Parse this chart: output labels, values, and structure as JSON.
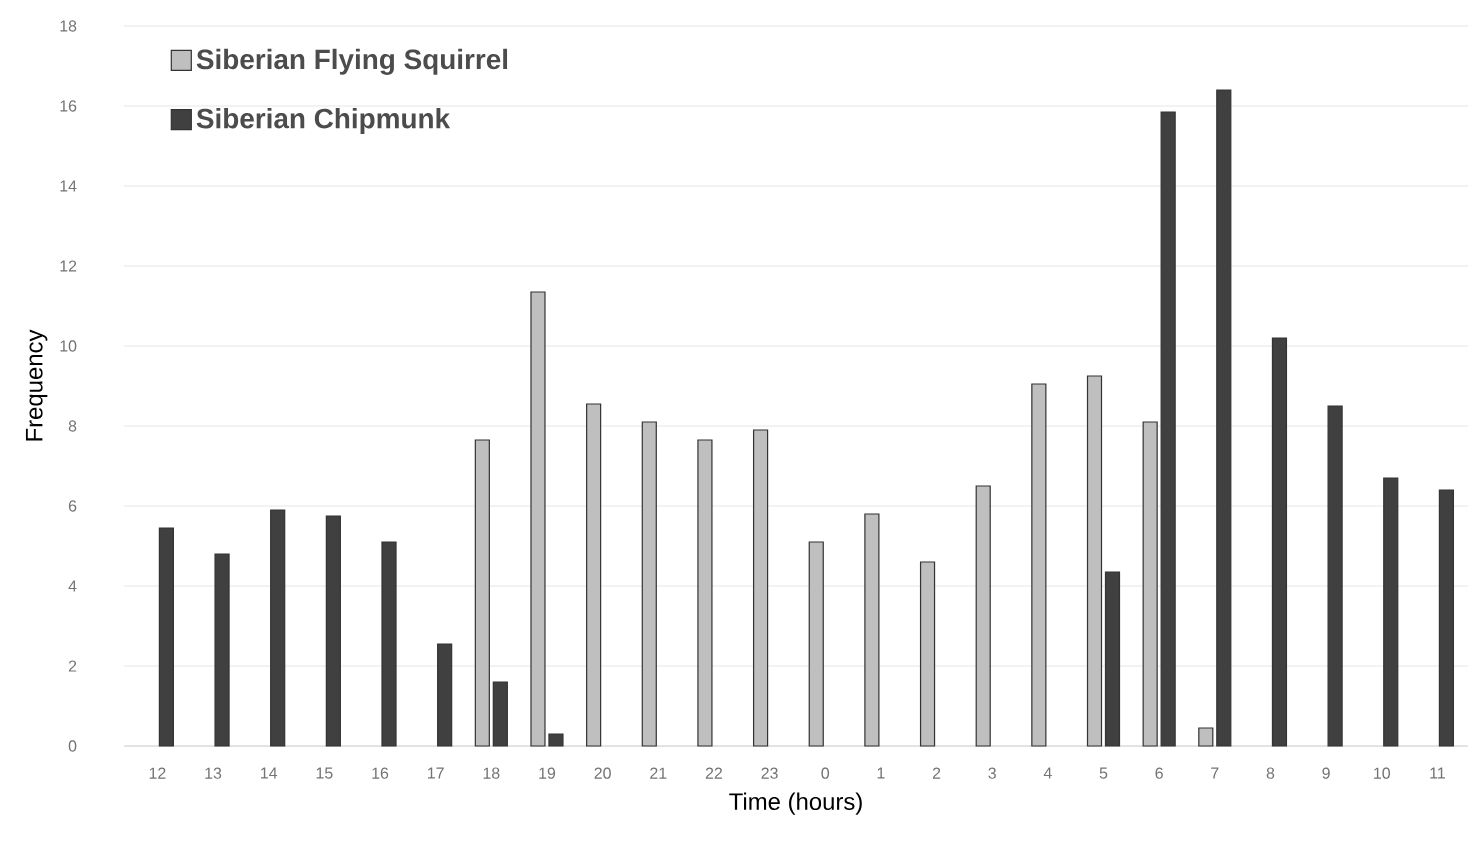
{
  "chart_data": {
    "type": "bar",
    "xlabel": "Time (hours)",
    "ylabel": "Frequency",
    "categories": [
      "12",
      "13",
      "14",
      "15",
      "16",
      "17",
      "18",
      "19",
      "20",
      "21",
      "22",
      "23",
      "0",
      "1",
      "2",
      "3",
      "4",
      "5",
      "6",
      "7",
      "8",
      "9",
      "10",
      "11"
    ],
    "series": [
      {
        "name": "Siberian Flying Squirrel",
        "color": "#bfbfbf",
        "values": [
          null,
          null,
          null,
          null,
          null,
          null,
          7.65,
          11.35,
          8.55,
          8.1,
          7.65,
          7.9,
          5.1,
          5.8,
          4.6,
          6.5,
          9.05,
          9.25,
          8.1,
          0.45,
          null,
          null,
          null,
          null
        ]
      },
      {
        "name": "Siberian Chipmunk",
        "color": "#404040",
        "values": [
          5.45,
          4.8,
          5.9,
          5.75,
          5.1,
          2.55,
          1.6,
          0.3,
          null,
          null,
          null,
          null,
          null,
          null,
          null,
          null,
          null,
          4.35,
          15.85,
          16.4,
          10.2,
          8.5,
          6.7,
          6.4
        ]
      }
    ],
    "ylim": [
      0,
      18
    ],
    "yticks": [
      0,
      2,
      4,
      6,
      8,
      10,
      12,
      14,
      16,
      18
    ],
    "grid": "y",
    "legend": "top left"
  }
}
